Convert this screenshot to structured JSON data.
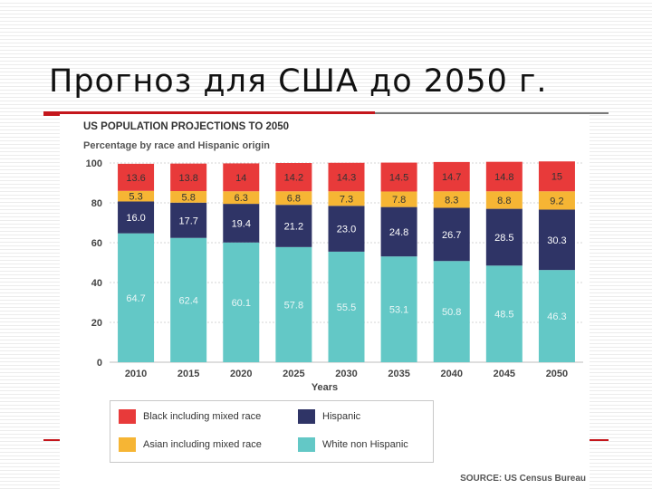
{
  "slide": {
    "title": "Прогноз для США до 2050 г."
  },
  "source": "SOURCE: US Census Bureau",
  "colors": {
    "white_non_hispanic": "#63c8c6",
    "hispanic": "#2f3466",
    "asian": "#f6b534",
    "black": "#e83a3a",
    "accent_rule": "#c4161c"
  },
  "chart_data": {
    "type": "bar",
    "stacked": true,
    "title": "US POPULATION PROJECTIONS TO 2050",
    "subtitle": "Percentage by race and Hispanic origin",
    "xlabel": "Years",
    "ylabel": "",
    "ylim": [
      0,
      100
    ],
    "yticks": [
      0,
      20,
      40,
      60,
      80,
      100
    ],
    "grid": true,
    "legend_position": "bottom-left",
    "categories": [
      "2010",
      "2015",
      "2020",
      "2025",
      "2030",
      "2035",
      "2040",
      "2045",
      "2050"
    ],
    "series": [
      {
        "name": "White non Hispanic",
        "key": "white_non_hispanic",
        "label_color": "#e9f6f6",
        "values": [
          64.7,
          62.4,
          60.1,
          57.8,
          55.5,
          53.1,
          50.8,
          48.5,
          46.3
        ],
        "labels": [
          "64.7",
          "62.4",
          "60.1",
          "57.8",
          "55.5",
          "53.1",
          "50.8",
          "48.5",
          "46.3"
        ]
      },
      {
        "name": "Hispanic",
        "key": "hispanic",
        "label_color": "#ffffff",
        "values": [
          16.0,
          17.7,
          19.4,
          21.2,
          23.0,
          24.8,
          26.7,
          28.5,
          30.3
        ],
        "labels": [
          "16.0",
          "17.7",
          "19.4",
          "21.2",
          "23.0",
          "24.8",
          "26.7",
          "28.5",
          "30.3"
        ]
      },
      {
        "name": "Asian including mixed race",
        "key": "asian",
        "label_color": "#333333",
        "values": [
          5.3,
          5.8,
          6.3,
          6.8,
          7.3,
          7.8,
          8.3,
          8.8,
          9.2
        ],
        "labels": [
          "5.3",
          "5.8",
          "6.3",
          "6.8",
          "7.3",
          "7.8",
          "8.3",
          "8.8",
          "9.2"
        ]
      },
      {
        "name": "Black including mixed race",
        "key": "black",
        "label_color": "#333333",
        "values": [
          13.6,
          13.8,
          14,
          14.2,
          14.3,
          14.5,
          14.7,
          14.8,
          15
        ],
        "labels": [
          "13.6",
          "13.8",
          "14",
          "14.2",
          "14.3",
          "14.5",
          "14.7",
          "14.8",
          "15"
        ]
      }
    ],
    "legend": [
      {
        "label": "Black including mixed race",
        "key": "black"
      },
      {
        "label": "Hispanic",
        "key": "hispanic"
      },
      {
        "label": "Asian including mixed race",
        "key": "asian"
      },
      {
        "label": "White non Hispanic",
        "key": "white_non_hispanic"
      }
    ]
  }
}
